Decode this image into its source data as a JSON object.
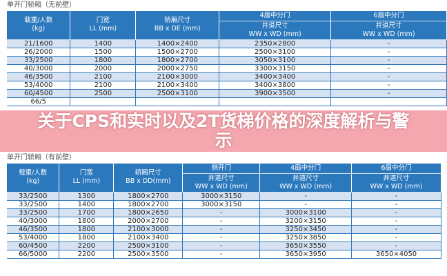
{
  "overlay_title": "关于CPS和实时以及2T货梯价格的深度解析与警示",
  "table1": {
    "title": "单开门轿厢（无前壁）",
    "headers": {
      "load": "载重/人数\n(kg)",
      "door": "门宽\nLL (mm)",
      "car": "轿厢尺寸\nBB x DE (mm)",
      "g4": "4扇中分门",
      "g6": "6扇中分门",
      "shaft4": "井道尺寸\nWW x WD (mm)",
      "shaft6": "井道尺寸\nWW x WD (mm)"
    },
    "rows": [
      [
        "21/1600",
        "1400",
        "1400×2400",
        "2350×2800",
        "-"
      ],
      [
        "26/2000",
        "1500",
        "1500×2700",
        "2500×3100",
        "-"
      ],
      [
        "33/2500",
        "1800",
        "1800×2700",
        "3050×3100",
        "-"
      ],
      [
        "40/3000",
        "2000",
        "2000×2750",
        "3300×3150",
        "-"
      ],
      [
        "46/3500",
        "2100",
        "2100×3000",
        "3400×3400",
        "-"
      ],
      [
        "53/4000",
        "2100",
        "2100×3400",
        "3400×3800",
        "-"
      ],
      [
        "60/4500",
        "2500",
        "2500×3100",
        "3900×3500",
        "-"
      ],
      [
        "66/5",
        "",
        "",
        "",
        ""
      ]
    ]
  },
  "table2": {
    "title": "单开门轿厢（有前壁）",
    "headers": {
      "load": "载重/人数\n(kg)",
      "door": "门宽\nLL (mm)",
      "car": "轿厢尺寸\nBB x DD(mm)",
      "g1": "侧开门",
      "g4": "4扇中分门",
      "g6": "6扇中分门",
      "shaft": "井道尺寸\nWW x WD (mm)"
    },
    "rows": [
      [
        "33/2500",
        "1300",
        "1800×2700",
        "3000×3150",
        "-",
        "-"
      ],
      [
        "33/2500",
        "1400",
        "1800×2700",
        "3000×3150",
        "-",
        "-"
      ],
      [
        "33/2500",
        "1700",
        "1800×2650",
        "-",
        "3000×3100",
        "-"
      ],
      [
        "40/3000",
        "1800",
        "2000×2700",
        "-",
        "3200×3150",
        "-"
      ],
      [
        "46/3500",
        "1800",
        "2100×3000",
        "-",
        "3250×3450",
        "-"
      ],
      [
        "53/4000",
        "1800",
        "2100×3400",
        "-",
        "3250×3850",
        "-"
      ],
      [
        "60/4500",
        "2200",
        "2500×3100",
        "-",
        "3650×3550",
        "-"
      ],
      [
        "66/5000",
        "2200",
        "2500×3500",
        "-",
        "3650×3950",
        "3650×4050"
      ]
    ]
  }
}
